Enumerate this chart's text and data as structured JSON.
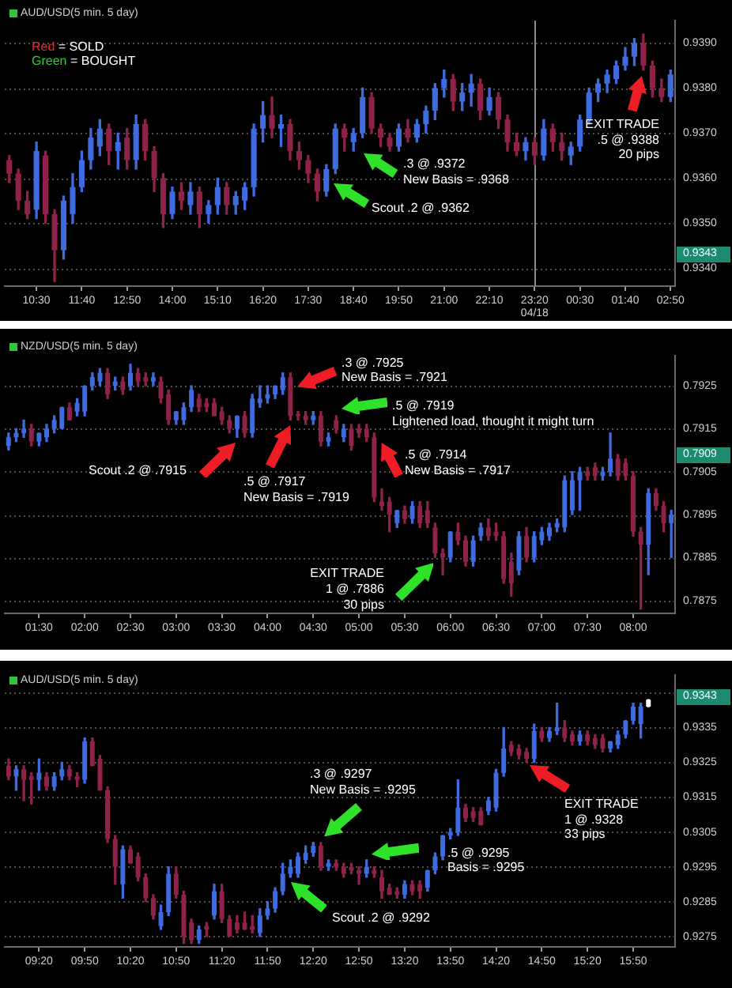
{
  "chart_data": [
    {
      "type": "candlestick",
      "title": "AUD/USD(5 min. 5 day)",
      "categories": [
        null,
        null,
        null,
        "10:30",
        null,
        null,
        null,
        null,
        "11:40",
        null,
        null,
        null,
        null,
        "12:50",
        null,
        null,
        null,
        null,
        "14:00",
        null,
        null,
        null,
        null,
        "15:10",
        null,
        null,
        null,
        null,
        "16:20",
        null,
        null,
        null,
        null,
        "17:30",
        null,
        null,
        null,
        null,
        "18:40",
        null,
        null,
        null,
        null,
        "19:50",
        null,
        null,
        null,
        null,
        "21:00",
        null,
        null,
        null,
        null,
        "22:10",
        null,
        null,
        null,
        null,
        "23:20",
        null,
        null,
        null,
        null,
        "00:30",
        null,
        null,
        null,
        null,
        "01:40",
        null,
        null,
        null,
        null,
        "02:50"
      ],
      "ohlc": [
        [
          0.9364,
          0.9365,
          0.9359,
          0.9361
        ],
        [
          0.9361,
          0.9362,
          0.9353,
          0.9355
        ],
        [
          0.9355,
          0.9357,
          0.9351,
          0.9352
        ],
        [
          0.9353,
          0.9368,
          0.9351,
          0.9366
        ],
        [
          0.9365,
          0.9366,
          0.935,
          0.9352
        ],
        [
          0.9352,
          0.9353,
          0.9337,
          0.9344
        ],
        [
          0.9344,
          0.9356,
          0.9342,
          0.9355
        ],
        [
          0.9352,
          0.9361,
          0.935,
          0.9358
        ],
        [
          0.9358,
          0.9366,
          0.9357,
          0.9364
        ],
        [
          0.9364,
          0.9371,
          0.9362,
          0.9369
        ],
        [
          0.9367,
          0.9373,
          0.9365,
          0.9371
        ],
        [
          0.9371,
          0.9372,
          0.9363,
          0.9366
        ],
        [
          0.9366,
          0.937,
          0.9362,
          0.9368
        ],
        [
          0.9369,
          0.9371,
          0.9362,
          0.9364
        ],
        [
          0.9364,
          0.9374,
          0.9362,
          0.9372
        ],
        [
          0.9372,
          0.9373,
          0.9364,
          0.9366
        ],
        [
          0.9366,
          0.9367,
          0.9357,
          0.936
        ],
        [
          0.936,
          0.9361,
          0.9349,
          0.9352
        ],
        [
          0.9352,
          0.9358,
          0.9351,
          0.9357
        ],
        [
          0.9357,
          0.9359,
          0.9353,
          0.9355
        ],
        [
          0.9354,
          0.9359,
          0.9352,
          0.9357
        ],
        [
          0.9357,
          0.9358,
          0.9349,
          0.9352
        ],
        [
          0.9352,
          0.9355,
          0.935,
          0.9354
        ],
        [
          0.9354,
          0.936,
          0.9352,
          0.9358
        ],
        [
          0.9358,
          0.9359,
          0.9352,
          0.9354
        ],
        [
          0.9354,
          0.9357,
          0.9352,
          0.9356
        ],
        [
          0.9355,
          0.9359,
          0.9353,
          0.9358
        ],
        [
          0.9358,
          0.9372,
          0.9356,
          0.9371
        ],
        [
          0.9371,
          0.9377,
          0.9368,
          0.9374
        ],
        [
          0.9374,
          0.9378,
          0.9369,
          0.9371
        ],
        [
          0.9371,
          0.9374,
          0.9367,
          0.9372
        ],
        [
          0.9372,
          0.9373,
          0.9364,
          0.9366
        ],
        [
          0.9366,
          0.9368,
          0.9362,
          0.9364
        ],
        [
          0.9364,
          0.9365,
          0.9359,
          0.9361
        ],
        [
          0.9361,
          0.9362,
          0.9355,
          0.9357
        ],
        [
          0.9357,
          0.9363,
          0.9356,
          0.9362
        ],
        [
          0.9362,
          0.9372,
          0.9361,
          0.9371
        ],
        [
          0.9371,
          0.9372,
          0.9366,
          0.9369
        ],
        [
          0.9368,
          0.9371,
          0.9366,
          0.937
        ],
        [
          0.937,
          0.938,
          0.9369,
          0.9378
        ],
        [
          0.9378,
          0.9379,
          0.937,
          0.9371
        ],
        [
          0.9371,
          0.9372,
          0.9367,
          0.9369
        ],
        [
          0.9369,
          0.937,
          0.9366,
          0.9367
        ],
        [
          0.9367,
          0.9372,
          0.9366,
          0.9371
        ],
        [
          0.9371,
          0.9373,
          0.9368,
          0.9369
        ],
        [
          0.9369,
          0.9373,
          0.9368,
          0.9372
        ],
        [
          0.9372,
          0.9376,
          0.937,
          0.9375
        ],
        [
          0.9375,
          0.9381,
          0.9373,
          0.938
        ],
        [
          0.938,
          0.9384,
          0.9378,
          0.9382
        ],
        [
          0.9382,
          0.9383,
          0.9375,
          0.9377
        ],
        [
          0.9377,
          0.9381,
          0.9375,
          0.9379
        ],
        [
          0.9379,
          0.9383,
          0.9376,
          0.9381
        ],
        [
          0.9381,
          0.9382,
          0.9373,
          0.9375
        ],
        [
          0.9375,
          0.938,
          0.9374,
          0.9378
        ],
        [
          0.9378,
          0.9379,
          0.9371,
          0.9373
        ],
        [
          0.9373,
          0.9374,
          0.9366,
          0.9368
        ],
        [
          0.9368,
          0.937,
          0.9365,
          0.9366
        ],
        [
          0.9366,
          0.9369,
          0.9364,
          0.9368
        ],
        [
          0.9368,
          0.9369,
          0.9363,
          0.9365
        ],
        [
          0.9365,
          0.9373,
          0.9364,
          0.9371
        ],
        [
          0.9371,
          0.9372,
          0.9366,
          0.9368
        ],
        [
          0.9368,
          0.937,
          0.9364,
          0.9366
        ],
        [
          0.9365,
          0.9368,
          0.9363,
          0.9367
        ],
        [
          0.9367,
          0.9374,
          0.9366,
          0.9373
        ],
        [
          0.9373,
          0.938,
          0.9372,
          0.9379
        ],
        [
          0.9379,
          0.9382,
          0.9377,
          0.9381
        ],
        [
          0.9381,
          0.9384,
          0.9379,
          0.9383
        ],
        [
          0.9382,
          0.9386,
          0.9381,
          0.9385
        ],
        [
          0.9385,
          0.9389,
          0.9384,
          0.9387
        ],
        [
          0.9387,
          0.9391,
          0.9385,
          0.939
        ],
        [
          0.939,
          0.9392,
          0.9384,
          0.9385
        ],
        [
          0.9385,
          0.9386,
          0.9378,
          0.938
        ],
        [
          0.938,
          0.9382,
          0.9377,
          0.9378
        ],
        [
          0.9378,
          0.9384,
          0.9377,
          0.9383
        ]
      ],
      "colors": [
        "#8e2248",
        "#8e2248",
        "#8e2248",
        "#3f6be0",
        "#8e2248",
        "#8e2248",
        "#3f6be0",
        "#3f6be0",
        "#3f6be0",
        "#3f6be0",
        "#3f6be0",
        "#8e2248",
        "#3f6be0",
        "#8e2248",
        "#3f6be0",
        "#8e2248",
        "#8e2248",
        "#8e2248",
        "#3f6be0",
        "#8e2248",
        "#3f6be0",
        "#8e2248",
        "#3f6be0",
        "#3f6be0",
        "#8e2248",
        "#3f6be0",
        "#3f6be0",
        "#3f6be0",
        "#3f6be0",
        "#8e2248",
        "#3f6be0",
        "#8e2248",
        "#8e2248",
        "#8e2248",
        "#8e2248",
        "#3f6be0",
        "#3f6be0",
        "#8e2248",
        "#3f6be0",
        "#3f6be0",
        "#8e2248",
        "#8e2248",
        "#8e2248",
        "#3f6be0",
        "#8e2248",
        "#3f6be0",
        "#3f6be0",
        "#3f6be0",
        "#3f6be0",
        "#8e2248",
        "#3f6be0",
        "#3f6be0",
        "#8e2248",
        "#3f6be0",
        "#8e2248",
        "#8e2248",
        "#8e2248",
        "#3f6be0",
        "#8e2248",
        "#3f6be0",
        "#8e2248",
        "#8e2248",
        "#3f6be0",
        "#3f6be0",
        "#3f6be0",
        "#3f6be0",
        "#3f6be0",
        "#3f6be0",
        "#3f6be0",
        "#3f6be0",
        "#8e2248",
        "#8e2248",
        "#8e2248",
        "#3f6be0"
      ],
      "ylim": [
        0.9336,
        0.9395
      ],
      "yticks": [
        {
          "value": 0.934,
          "label": "0.9340"
        },
        {
          "value": 0.935,
          "label": "0.9350"
        },
        {
          "value": 0.936,
          "label": "0.9360"
        },
        {
          "value": 0.937,
          "label": "0.9370"
        },
        {
          "value": 0.938,
          "label": "0.9380"
        },
        {
          "value": 0.939,
          "label": "0.9390"
        }
      ],
      "grid": "y",
      "ref_lines": [
        {
          "axis": "x",
          "value": "23:20",
          "label": "04/18"
        }
      ],
      "annotations": [
        "Red = SOLD",
        "Green = BOUGHT",
        ".3 @ .9372",
        "New Basis = .9368",
        "Scout .2 @ .9362",
        "EXIT TRADE",
        ".5 @ .9388",
        "20 pips",
        "0.9343"
      ]
    },
    {
      "type": "candlestick",
      "title": "NZD/USD(5 min. 5 day)",
      "categories": [
        null,
        null,
        null,
        null,
        "01:30",
        null,
        null,
        null,
        null,
        null,
        "02:00",
        null,
        null,
        null,
        null,
        null,
        "02:30",
        null,
        null,
        null,
        null,
        null,
        "03:00",
        null,
        null,
        null,
        null,
        null,
        "03:30",
        null,
        null,
        null,
        null,
        null,
        "04:00",
        null,
        null,
        null,
        null,
        null,
        "04:30",
        null,
        null,
        null,
        null,
        null,
        "05:00",
        null,
        null,
        null,
        null,
        null,
        "05:30",
        null,
        null,
        null,
        null,
        null,
        "06:00",
        null,
        null,
        null,
        null,
        null,
        "06:30",
        null,
        null,
        null,
        null,
        null,
        "07:00",
        null,
        null,
        null,
        null,
        null,
        "07:30",
        null,
        null,
        null,
        null,
        null,
        "08:00",
        null,
        null,
        null,
        null,
        null
      ],
      "ohlc": [
        [
          0.7911,
          0.7914,
          0.791,
          0.7913
        ],
        [
          0.7913,
          0.7915,
          0.7912,
          0.7914
        ],
        [
          0.7914,
          0.7917,
          0.7913,
          0.7915
        ],
        [
          0.7915,
          0.7916,
          0.7911,
          0.7912
        ],
        [
          0.7912,
          0.7914,
          0.7911,
          0.7914
        ],
        [
          0.7913,
          0.7916,
          0.7912,
          0.7915
        ],
        [
          0.7915,
          0.7918,
          0.7914,
          0.7917
        ],
        [
          0.7915,
          0.792,
          0.7915,
          0.792
        ],
        [
          0.792,
          0.7921,
          0.7917,
          0.7917
        ],
        [
          0.7919,
          0.7922,
          0.7918,
          0.7921
        ],
        [
          0.7919,
          0.7925,
          0.7918,
          0.7925
        ],
        [
          0.7925,
          0.7928,
          0.7924,
          0.7927
        ],
        [
          0.7926,
          0.7929,
          0.7925,
          0.7928
        ],
        [
          0.7928,
          0.7929,
          0.7922,
          0.7923
        ],
        [
          0.7925,
          0.7927,
          0.7924,
          0.7926
        ],
        [
          0.7926,
          0.7927,
          0.7923,
          0.7924
        ],
        [
          0.7925,
          0.793,
          0.7924,
          0.7928
        ],
        [
          0.7928,
          0.7929,
          0.7925,
          0.7926
        ],
        [
          0.7927,
          0.7928,
          0.7925,
          0.7926
        ],
        [
          0.7926,
          0.7928,
          0.7925,
          0.7927
        ],
        [
          0.7926,
          0.7927,
          0.7921,
          0.7922
        ],
        [
          0.7923,
          0.7924,
          0.7916,
          0.7917
        ],
        [
          0.7917,
          0.7919,
          0.7916,
          0.7919
        ],
        [
          0.7917,
          0.7921,
          0.7916,
          0.792
        ],
        [
          0.792,
          0.7925,
          0.7919,
          0.7924
        ],
        [
          0.7922,
          0.7923,
          0.7919,
          0.792
        ],
        [
          0.7921,
          0.7922,
          0.7919,
          0.792
        ],
        [
          0.7921,
          0.7922,
          0.7918,
          0.7918
        ],
        [
          0.7919,
          0.792,
          0.7916,
          0.7917
        ],
        [
          0.7917,
          0.7918,
          0.7914,
          0.7915
        ],
        [
          0.7915,
          0.7918,
          0.7913,
          0.7918
        ],
        [
          0.7918,
          0.7919,
          0.7913,
          0.7914
        ],
        [
          0.7914,
          0.7923,
          0.7913,
          0.7922
        ],
        [
          0.7921,
          0.7925,
          0.792,
          0.7922
        ],
        [
          0.7922,
          0.7925,
          0.7921,
          0.7923
        ],
        [
          0.7923,
          0.7925,
          0.7922,
          0.7925
        ],
        [
          0.7924,
          0.7928,
          0.7923,
          0.7927
        ],
        [
          0.7927,
          0.7928,
          0.7917,
          0.7918
        ],
        [
          0.7918,
          0.7919,
          0.7917,
          0.7918
        ],
        [
          0.7918,
          0.7919,
          0.7916,
          0.7917
        ],
        [
          0.7917,
          0.7919,
          0.7916,
          0.7918
        ],
        [
          0.7918,
          0.7919,
          0.7911,
          0.7912
        ],
        [
          0.7912,
          0.7914,
          0.7911,
          0.7913
        ],
        [
          0.7917,
          0.7918,
          0.7914,
          0.7915
        ],
        [
          0.7913,
          0.7916,
          0.7912,
          0.7915
        ],
        [
          0.7915,
          0.7916,
          0.791,
          0.7911
        ],
        [
          0.7915,
          0.7916,
          0.7913,
          0.7914
        ],
        [
          0.7915,
          0.7916,
          0.7912,
          0.7913
        ],
        [
          0.7913,
          0.7914,
          0.7898,
          0.7899
        ],
        [
          0.7898,
          0.7901,
          0.7896,
          0.7897
        ],
        [
          0.7898,
          0.7899,
          0.7891,
          0.7895
        ],
        [
          0.7893,
          0.7896,
          0.7892,
          0.7896
        ],
        [
          0.7896,
          0.7897,
          0.7893,
          0.7894
        ],
        [
          0.7894,
          0.7898,
          0.7893,
          0.7897
        ],
        [
          0.7897,
          0.7898,
          0.7892,
          0.7893
        ],
        [
          0.7896,
          0.7898,
          0.7892,
          0.7893
        ],
        [
          0.7892,
          0.7893,
          0.7885,
          0.7886
        ],
        [
          0.7886,
          0.7887,
          0.7881,
          0.7885
        ],
        [
          0.7885,
          0.7891,
          0.7884,
          0.7891
        ],
        [
          0.7891,
          0.7893,
          0.7888,
          0.7889
        ],
        [
          0.7889,
          0.789,
          0.7883,
          0.7884
        ],
        [
          0.7884,
          0.789,
          0.7883,
          0.7889
        ],
        [
          0.789,
          0.7893,
          0.7889,
          0.7892
        ],
        [
          0.7892,
          0.7894,
          0.7889,
          0.789
        ],
        [
          0.7891,
          0.7893,
          0.7889,
          0.789
        ],
        [
          0.789,
          0.7891,
          0.7879,
          0.788
        ],
        [
          0.7884,
          0.7886,
          0.7876,
          0.7879
        ],
        [
          0.7882,
          0.7891,
          0.7881,
          0.789
        ],
        [
          0.789,
          0.7892,
          0.7884,
          0.7885
        ],
        [
          0.7885,
          0.7891,
          0.7884,
          0.789
        ],
        [
          0.7889,
          0.7892,
          0.7888,
          0.7891
        ],
        [
          0.789,
          0.7893,
          0.7889,
          0.7892
        ],
        [
          0.7892,
          0.7894,
          0.7891,
          0.7893
        ],
        [
          0.7892,
          0.7904,
          0.7891,
          0.7903
        ],
        [
          0.7896,
          0.7905,
          0.7895,
          0.7903
        ],
        [
          0.7903,
          0.7906,
          0.7896,
          0.7905
        ],
        [
          0.7905,
          0.7906,
          0.7903,
          0.7904
        ],
        [
          0.7906,
          0.7907,
          0.7903,
          0.7904
        ],
        [
          0.7904,
          0.7906,
          0.7903,
          0.7905
        ],
        [
          0.7905,
          0.7914,
          0.7904,
          0.7908
        ],
        [
          0.7908,
          0.7909,
          0.7903,
          0.7904
        ],
        [
          0.7907,
          0.7908,
          0.7903,
          0.7904
        ],
        [
          0.7904,
          0.7905,
          0.789,
          0.7891
        ],
        [
          0.7891,
          0.7892,
          0.7873,
          0.7888
        ],
        [
          0.7888,
          0.7901,
          0.7881,
          0.79
        ],
        [
          0.79,
          0.7901,
          0.7896,
          0.7897
        ],
        [
          0.7897,
          0.7898,
          0.7891,
          0.7893
        ],
        [
          0.7893,
          0.7896,
          0.7885,
          0.7895
        ]
      ],
      "colors": [
        "#3f6be0",
        "#3f6be0",
        "#3f6be0",
        "#8e2248",
        "#3f6be0",
        "#3f6be0",
        "#3f6be0",
        "#3f6be0",
        "#8e2248",
        "#3f6be0",
        "#3f6be0",
        "#3f6be0",
        "#3f6be0",
        "#8e2248",
        "#3f6be0",
        "#8e2248",
        "#3f6be0",
        "#8e2248",
        "#8e2248",
        "#3f6be0",
        "#8e2248",
        "#8e2248",
        "#3f6be0",
        "#3f6be0",
        "#3f6be0",
        "#8e2248",
        "#8e2248",
        "#8e2248",
        "#8e2248",
        "#8e2248",
        "#3f6be0",
        "#8e2248",
        "#3f6be0",
        "#3f6be0",
        "#3f6be0",
        "#3f6be0",
        "#3f6be0",
        "#8e2248",
        "#8e2248",
        "#8e2248",
        "#3f6be0",
        "#8e2248",
        "#3f6be0",
        "#8e2248",
        "#3f6be0",
        "#8e2248",
        "#8e2248",
        "#8e2248",
        "#8e2248",
        "#8e2248",
        "#8e2248",
        "#3f6be0",
        "#8e2248",
        "#3f6be0",
        "#8e2248",
        "#8e2248",
        "#8e2248",
        "#8e2248",
        "#3f6be0",
        "#8e2248",
        "#8e2248",
        "#3f6be0",
        "#3f6be0",
        "#8e2248",
        "#8e2248",
        "#8e2248",
        "#8e2248",
        "#3f6be0",
        "#8e2248",
        "#3f6be0",
        "#3f6be0",
        "#3f6be0",
        "#3f6be0",
        "#3f6be0",
        "#3f6be0",
        "#3f6be0",
        "#8e2248",
        "#8e2248",
        "#3f6be0",
        "#3f6be0",
        "#8e2248",
        "#8e2248",
        "#8e2248",
        "#8e2248",
        "#3f6be0",
        "#8e2248",
        "#8e2248",
        "#3f6be0"
      ],
      "ylim": [
        0.7872,
        0.7932
      ],
      "yticks": [
        0.7875,
        0.7885,
        0.7895,
        0.7905,
        0.7915,
        0.7925
      ],
      "grid": "y",
      "annotations": [
        ".3 @ .7925",
        "New Basis = .7921",
        ".5 @ .7919",
        "Lightened load, thought it might turn",
        ".5 @ .7914",
        "New Basis = .7917",
        "Scout .2 @ .7915",
        ".5 @ .7917",
        "New Basis = .7919",
        "EXIT TRADE",
        "1 @ .7886",
        "30 pips",
        "0.7909"
      ]
    },
    {
      "type": "candlestick",
      "title": "AUD/USD(5 min. 5 day)",
      "categories": [
        null,
        null,
        null,
        null,
        "09:20",
        null,
        null,
        null,
        null,
        null,
        "09:50",
        null,
        null,
        null,
        null,
        null,
        "10:20",
        null,
        null,
        null,
        null,
        null,
        "10:50",
        null,
        null,
        null,
        null,
        null,
        "11:20",
        null,
        null,
        null,
        null,
        null,
        "11:50",
        null,
        null,
        null,
        null,
        null,
        "12:20",
        null,
        null,
        null,
        null,
        null,
        "12:50",
        null,
        null,
        null,
        null,
        null,
        "13:20",
        null,
        null,
        null,
        null,
        null,
        "13:50",
        null,
        null,
        null,
        null,
        null,
        "14:20",
        null,
        null,
        null,
        null,
        null,
        "14:50",
        null,
        null,
        null,
        null,
        null,
        "15:20",
        null,
        null,
        null,
        null,
        null,
        "15:50",
        null,
        null,
        null,
        null,
        null
      ],
      "ohlc": [
        [
          0.9324,
          0.9326,
          0.932,
          0.9321
        ],
        [
          0.9321,
          0.9324,
          0.9317,
          0.9323
        ],
        [
          0.9323,
          0.9324,
          0.9314,
          0.932
        ],
        [
          0.9321,
          0.9322,
          0.9313,
          0.932
        ],
        [
          0.932,
          0.9326,
          0.9317,
          0.9322
        ],
        [
          0.9321,
          0.9322,
          0.9317,
          0.9318
        ],
        [
          0.9318,
          0.9322,
          0.9317,
          0.9321
        ],
        [
          0.9321,
          0.9325,
          0.932,
          0.9323
        ],
        [
          0.9323,
          0.9324,
          0.932,
          0.9321
        ],
        [
          0.9321,
          0.9322,
          0.9318,
          0.932
        ],
        [
          0.932,
          0.9332,
          0.9319,
          0.9331
        ],
        [
          0.9331,
          0.9332,
          0.9324,
          0.9324
        ],
        [
          0.9326,
          0.9327,
          0.9317,
          0.9317
        ],
        [
          0.9317,
          0.9318,
          0.9302,
          0.9303
        ],
        [
          0.9303,
          0.9304,
          0.929,
          0.9295
        ],
        [
          0.929,
          0.9301,
          0.9286,
          0.93
        ],
        [
          0.93,
          0.9301,
          0.9296,
          0.9296
        ],
        [
          0.9298,
          0.9299,
          0.9291,
          0.9292
        ],
        [
          0.9292,
          0.9293,
          0.9285,
          0.9286
        ],
        [
          0.9286,
          0.9287,
          0.928,
          0.9281
        ],
        [
          0.9278,
          0.9284,
          0.9277,
          0.9282
        ],
        [
          0.9282,
          0.9295,
          0.9281,
          0.9293
        ],
        [
          0.9293,
          0.9295,
          0.9286,
          0.9287
        ],
        [
          0.9287,
          0.9288,
          0.9273,
          0.9275
        ],
        [
          0.9279,
          0.928,
          0.9273,
          0.9274
        ],
        [
          0.9274,
          0.9278,
          0.9273,
          0.9277
        ],
        [
          0.9278,
          0.9279,
          0.9275,
          0.9277
        ],
        [
          0.9281,
          0.929,
          0.928,
          0.9288
        ],
        [
          0.9288,
          0.929,
          0.9279,
          0.928
        ],
        [
          0.928,
          0.9281,
          0.9275,
          0.9275
        ],
        [
          0.9279,
          0.9281,
          0.9276,
          0.9277
        ],
        [
          0.9279,
          0.9282,
          0.9277,
          0.9277
        ],
        [
          0.9278,
          0.9281,
          0.9276,
          0.9277
        ],
        [
          0.9276,
          0.9283,
          0.9275,
          0.9281
        ],
        [
          0.9281,
          0.9285,
          0.928,
          0.9283
        ],
        [
          0.9283,
          0.9289,
          0.9282,
          0.9288
        ],
        [
          0.9288,
          0.9296,
          0.9287,
          0.9293
        ],
        [
          0.9293,
          0.9297,
          0.9292,
          0.9295
        ],
        [
          0.9293,
          0.9299,
          0.9292,
          0.9298
        ],
        [
          0.9297,
          0.9301,
          0.9296,
          0.9299
        ],
        [
          0.9299,
          0.9302,
          0.9298,
          0.9301
        ],
        [
          0.9301,
          0.9302,
          0.9294,
          0.9295
        ],
        [
          0.9295,
          0.9297,
          0.9294,
          0.9296
        ],
        [
          0.9296,
          0.9297,
          0.9294,
          0.9295
        ],
        [
          0.9295,
          0.9296,
          0.9292,
          0.9293
        ],
        [
          0.9295,
          0.9296,
          0.9293,
          0.9294
        ],
        [
          0.9294,
          0.9295,
          0.929,
          0.9293
        ],
        [
          0.9293,
          0.9297,
          0.9292,
          0.9295
        ],
        [
          0.9294,
          0.9295,
          0.9292,
          0.9293
        ],
        [
          0.9292,
          0.9294,
          0.9286,
          0.9288
        ],
        [
          0.9289,
          0.929,
          0.9287,
          0.9287
        ],
        [
          0.9288,
          0.9289,
          0.9286,
          0.9287
        ],
        [
          0.9287,
          0.9291,
          0.9286,
          0.929
        ],
        [
          0.929,
          0.9291,
          0.9287,
          0.9288
        ],
        [
          0.929,
          0.9291,
          0.9286,
          0.9288
        ],
        [
          0.9289,
          0.9294,
          0.9288,
          0.9294
        ],
        [
          0.9294,
          0.9299,
          0.9293,
          0.9298
        ],
        [
          0.9298,
          0.9304,
          0.9297,
          0.9304
        ],
        [
          0.9304,
          0.9306,
          0.9303,
          0.9305
        ],
        [
          0.9305,
          0.932,
          0.9304,
          0.9312
        ],
        [
          0.9312,
          0.9313,
          0.9308,
          0.9309
        ],
        [
          0.9311,
          0.9312,
          0.9308,
          0.9309
        ],
        [
          0.9311,
          0.9312,
          0.9307,
          0.9307
        ],
        [
          0.9311,
          0.9315,
          0.931,
          0.9314
        ],
        [
          0.9312,
          0.9323,
          0.9311,
          0.9322
        ],
        [
          0.9322,
          0.9335,
          0.9321,
          0.9329
        ],
        [
          0.933,
          0.9331,
          0.9327,
          0.9328
        ],
        [
          0.9329,
          0.933,
          0.9326,
          0.9327
        ],
        [
          0.9328,
          0.9329,
          0.9325,
          0.9326
        ],
        [
          0.9326,
          0.9336,
          0.9325,
          0.9334
        ],
        [
          0.9334,
          0.9335,
          0.9331,
          0.9332
        ],
        [
          0.9332,
          0.9335,
          0.9331,
          0.9334
        ],
        [
          0.9334,
          0.9342,
          0.9333,
          0.9335
        ],
        [
          0.9335,
          0.9337,
          0.9331,
          0.9332
        ],
        [
          0.9333,
          0.9334,
          0.933,
          0.9331
        ],
        [
          0.9331,
          0.9334,
          0.933,
          0.9333
        ],
        [
          0.9333,
          0.9334,
          0.933,
          0.9331
        ],
        [
          0.9332,
          0.9333,
          0.9329,
          0.933
        ],
        [
          0.9332,
          0.9333,
          0.9328,
          0.9329
        ],
        [
          0.9329,
          0.9331,
          0.9328,
          0.9331
        ],
        [
          0.933,
          0.9334,
          0.9329,
          0.9333
        ],
        [
          0.9333,
          0.9337,
          0.9332,
          0.9337
        ],
        [
          0.9337,
          0.9342,
          0.9336,
          0.9341
        ],
        [
          0.9336,
          0.9342,
          0.9332,
          0.9341
        ],
        [
          0.9343,
          0.9343,
          0.9341,
          0.9341
        ],
        null,
        null,
        null
      ],
      "colors": [
        "#8e2248",
        "#3f6be0",
        "#8e2248",
        "#8e2248",
        "#3f6be0",
        "#8e2248",
        "#3f6be0",
        "#3f6be0",
        "#8e2248",
        "#8e2248",
        "#3f6be0",
        "#8e2248",
        "#8e2248",
        "#8e2248",
        "#8e2248",
        "#3f6be0",
        "#8e2248",
        "#8e2248",
        "#8e2248",
        "#8e2248",
        "#3f6be0",
        "#3f6be0",
        "#8e2248",
        "#8e2248",
        "#8e2248",
        "#3f6be0",
        "#8e2248",
        "#3f6be0",
        "#8e2248",
        "#8e2248",
        "#8e2248",
        "#8e2248",
        "#8e2248",
        "#3f6be0",
        "#3f6be0",
        "#3f6be0",
        "#3f6be0",
        "#3f6be0",
        "#3f6be0",
        "#3f6be0",
        "#3f6be0",
        "#8e2248",
        "#3f6be0",
        "#8e2248",
        "#8e2248",
        "#8e2248",
        "#8e2248",
        "#3f6be0",
        "#8e2248",
        "#8e2248",
        "#8e2248",
        "#8e2248",
        "#3f6be0",
        "#8e2248",
        "#8e2248",
        "#3f6be0",
        "#3f6be0",
        "#3f6be0",
        "#3f6be0",
        "#3f6be0",
        "#8e2248",
        "#8e2248",
        "#8e2248",
        "#3f6be0",
        "#3f6be0",
        "#3f6be0",
        "#8e2248",
        "#8e2248",
        "#8e2248",
        "#3f6be0",
        "#8e2248",
        "#3f6be0",
        "#3f6be0",
        "#8e2248",
        "#8e2248",
        "#3f6be0",
        "#8e2248",
        "#8e2248",
        "#8e2248",
        "#3f6be0",
        "#3f6be0",
        "#3f6be0",
        "#3f6be0",
        "#3f6be0",
        "#ffffff",
        null,
        null,
        null
      ],
      "ylim": [
        0.9272,
        0.935
      ],
      "yticks": [
        0.9275,
        0.9285,
        0.9295,
        0.9305,
        0.9315,
        0.9325,
        0.9335,
        {
          "value": 0.9345,
          "label": null
        }
      ],
      "grid": "y",
      "annotations": [
        ".3 @ .9297",
        "New Basis = .9295",
        "Scout .2 @ .9292",
        ".5 @ .9295",
        "Basis = .9295",
        "EXIT TRADE",
        "1 @ .9328",
        "33 pips",
        "0.9343"
      ]
    }
  ]
}
